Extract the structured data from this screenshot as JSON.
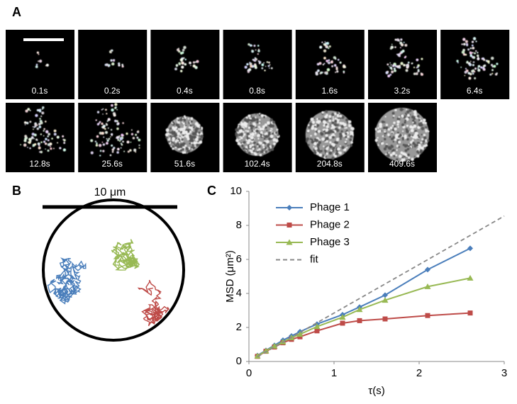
{
  "panel_labels": [
    "A",
    "B",
    "C"
  ],
  "frames": [
    "0.1s",
    "0.2s",
    "0.4s",
    "0.8s",
    "1.6s",
    "3.2s",
    "6.4s",
    "12.8s",
    "25.6s",
    "51.6s",
    "102.4s",
    "204.8s",
    "409.6s"
  ],
  "scale_bar_label": "10 μm",
  "chart_data": {
    "type": "line",
    "xlabel": "τ(s)",
    "ylabel": "MSD (μm²)",
    "x": [
      0.1,
      0.2,
      0.3,
      0.4,
      0.5,
      0.6,
      0.8,
      1.1,
      1.3,
      1.6,
      2.1,
      2.6
    ],
    "series": [
      {
        "name": "Phage 1",
        "color": "#4a7ebb",
        "marker": "diamond",
        "values": [
          0.35,
          0.65,
          0.95,
          1.25,
          1.5,
          1.75,
          2.2,
          2.75,
          3.2,
          3.9,
          5.4,
          6.65
        ]
      },
      {
        "name": "Phage 2",
        "color": "#be4b48",
        "marker": "square",
        "values": [
          0.3,
          0.6,
          0.85,
          1.1,
          1.3,
          1.45,
          1.8,
          2.25,
          2.4,
          2.5,
          2.7,
          2.85
        ]
      },
      {
        "name": "Phage 3",
        "color": "#98b954",
        "marker": "triangle",
        "values": [
          0.32,
          0.62,
          0.9,
          1.15,
          1.4,
          1.6,
          2.05,
          2.6,
          3.05,
          3.6,
          4.4,
          4.9
        ]
      },
      {
        "name": "fit",
        "color": "#888888",
        "dashed": true,
        "x": [
          0.1,
          3
        ],
        "values": [
          0.28,
          8.55
        ]
      }
    ],
    "xlim": [
      0,
      3
    ],
    "ylim": [
      0,
      10
    ],
    "xticks": [
      0,
      1,
      2,
      3
    ],
    "yticks": [
      0,
      2,
      4,
      6,
      8,
      10
    ],
    "legend": "upper-left"
  }
}
